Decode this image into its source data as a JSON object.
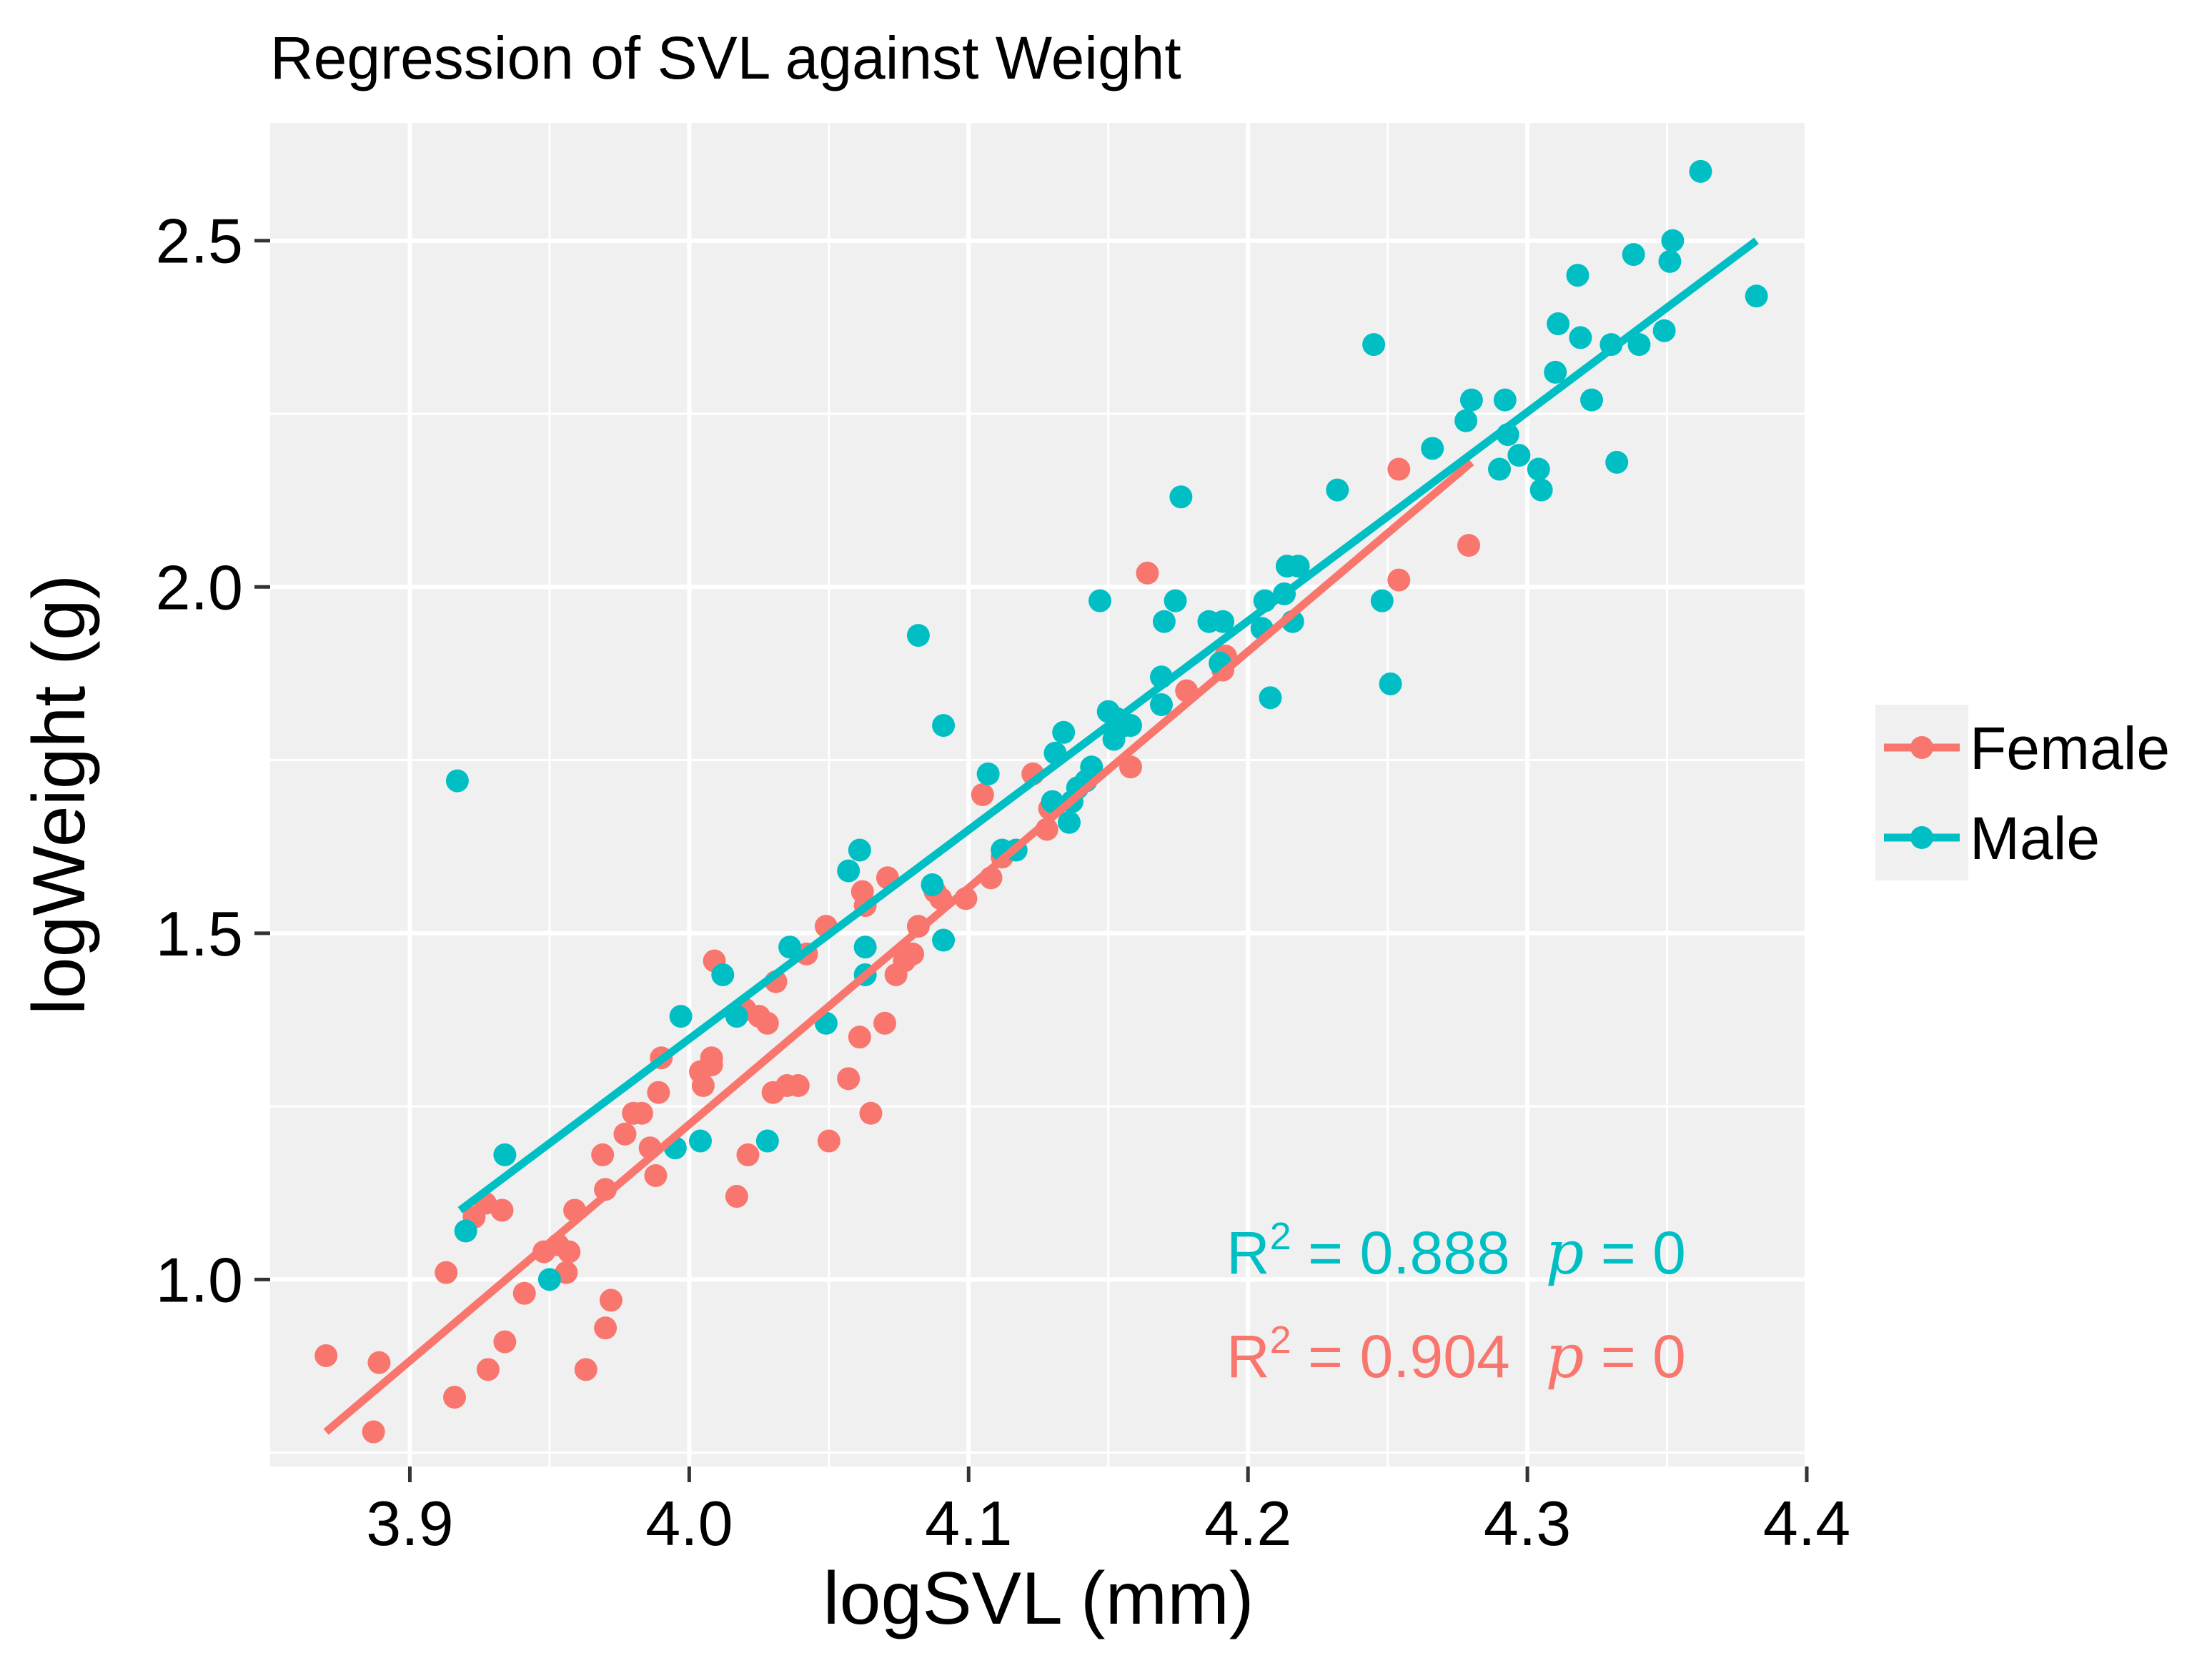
{
  "chart_data": {
    "type": "scatter",
    "title": "Regression of SVL against Weight",
    "xlabel": "logSVL (mm)",
    "ylabel": "logWeight (g)",
    "xlim": [
      3.85,
      4.4
    ],
    "ylim": [
      0.73,
      2.67
    ],
    "xticks": [
      3.9,
      4.0,
      4.1,
      4.2,
      4.3,
      4.4
    ],
    "xtick_labels": [
      "3.9",
      "4.0",
      "4.1",
      "4.2",
      "4.3",
      "4.4"
    ],
    "yticks": [
      1.0,
      1.5,
      2.0,
      2.5
    ],
    "ytick_labels": [
      "1.0",
      "1.5",
      "2.0",
      "2.5"
    ],
    "legend": {
      "position": "right",
      "entries": [
        "Female",
        "Male"
      ]
    },
    "colors": {
      "Female": "#F8766D",
      "Male": "#00BFC4",
      "panel": "#F0F0F0",
      "grid": "#FFFFFF"
    },
    "series": [
      {
        "name": "Female",
        "color": "#F8766D",
        "points": [
          [
            3.87,
            0.89
          ],
          [
            3.887,
            0.78
          ],
          [
            3.889,
            0.88
          ],
          [
            3.913,
            1.01
          ],
          [
            3.916,
            0.83
          ],
          [
            3.923,
            1.09
          ],
          [
            3.927,
            1.11
          ],
          [
            3.928,
            0.87
          ],
          [
            3.933,
            1.1
          ],
          [
            3.934,
            0.91
          ],
          [
            3.941,
            0.98
          ],
          [
            3.948,
            1.04
          ],
          [
            3.953,
            1.05
          ],
          [
            3.956,
            1.01
          ],
          [
            3.957,
            1.04
          ],
          [
            3.959,
            1.1
          ],
          [
            3.963,
            0.87
          ],
          [
            3.969,
            1.18
          ],
          [
            3.97,
            0.93
          ],
          [
            3.97,
            1.13
          ],
          [
            3.972,
            0.97
          ],
          [
            3.977,
            1.21
          ],
          [
            3.98,
            1.24
          ],
          [
            3.983,
            1.24
          ],
          [
            3.986,
            1.19
          ],
          [
            3.988,
            1.15
          ],
          [
            3.989,
            1.27
          ],
          [
            3.99,
            1.32
          ],
          [
            4.004,
            1.3
          ],
          [
            4.005,
            1.28
          ],
          [
            4.008,
            1.31
          ],
          [
            4.008,
            1.32
          ],
          [
            4.009,
            1.46
          ],
          [
            4.017,
            1.12
          ],
          [
            4.02,
            1.39
          ],
          [
            4.021,
            1.18
          ],
          [
            4.025,
            1.38
          ],
          [
            4.028,
            1.37
          ],
          [
            4.03,
            1.27
          ],
          [
            4.031,
            1.43
          ],
          [
            4.035,
            1.28
          ],
          [
            4.039,
            1.28
          ],
          [
            4.042,
            1.47
          ],
          [
            4.049,
            1.51
          ],
          [
            4.05,
            1.2
          ],
          [
            4.057,
            1.29
          ],
          [
            4.061,
            1.35
          ],
          [
            4.062,
            1.56
          ],
          [
            4.063,
            1.54
          ],
          [
            4.065,
            1.24
          ],
          [
            4.07,
            1.37
          ],
          [
            4.071,
            1.58
          ],
          [
            4.074,
            1.44
          ],
          [
            4.077,
            1.46
          ],
          [
            4.08,
            1.47
          ],
          [
            4.082,
            1.51
          ],
          [
            4.088,
            1.56
          ],
          [
            4.09,
            1.55
          ],
          [
            4.099,
            1.55
          ],
          [
            4.105,
            1.7
          ],
          [
            4.108,
            1.58
          ],
          [
            4.112,
            1.61
          ],
          [
            4.123,
            1.73
          ],
          [
            4.128,
            1.65
          ],
          [
            4.129,
            1.68
          ],
          [
            4.158,
            1.74
          ],
          [
            4.164,
            2.02
          ],
          [
            4.178,
            1.85
          ],
          [
            4.191,
            1.88
          ],
          [
            4.192,
            1.9
          ],
          [
            4.254,
            2.01
          ],
          [
            4.254,
            2.17
          ],
          [
            4.279,
            2.06
          ]
        ],
        "fit": {
          "x0": 3.87,
          "y0": 0.78,
          "x1": 4.28,
          "y1": 2.18
        }
      },
      {
        "name": "Male",
        "color": "#00BFC4",
        "points": [
          [
            3.917,
            1.72
          ],
          [
            3.92,
            1.07
          ],
          [
            3.934,
            1.18
          ],
          [
            3.95,
            1.0
          ],
          [
            3.995,
            1.19
          ],
          [
            3.997,
            1.38
          ],
          [
            4.004,
            1.2
          ],
          [
            4.012,
            1.44
          ],
          [
            4.017,
            1.38
          ],
          [
            4.028,
            1.2
          ],
          [
            4.036,
            1.48
          ],
          [
            4.049,
            1.37
          ],
          [
            4.057,
            1.59
          ],
          [
            4.061,
            1.62
          ],
          [
            4.063,
            1.44
          ],
          [
            4.063,
            1.48
          ],
          [
            4.082,
            1.93
          ],
          [
            4.087,
            1.57
          ],
          [
            4.091,
            1.49
          ],
          [
            4.091,
            1.8
          ],
          [
            4.107,
            1.73
          ],
          [
            4.112,
            1.62
          ],
          [
            4.117,
            1.62
          ],
          [
            4.13,
            1.69
          ],
          [
            4.131,
            1.76
          ],
          [
            4.134,
            1.79
          ],
          [
            4.136,
            1.66
          ],
          [
            4.137,
            1.69
          ],
          [
            4.139,
            1.71
          ],
          [
            4.142,
            1.72
          ],
          [
            4.144,
            1.74
          ],
          [
            4.147,
            1.98
          ],
          [
            4.15,
            1.82
          ],
          [
            4.152,
            1.78
          ],
          [
            4.153,
            1.81
          ],
          [
            4.156,
            1.8
          ],
          [
            4.158,
            1.8
          ],
          [
            4.169,
            1.83
          ],
          [
            4.169,
            1.87
          ],
          [
            4.17,
            1.95
          ],
          [
            4.174,
            1.98
          ],
          [
            4.176,
            2.13
          ],
          [
            4.186,
            1.95
          ],
          [
            4.19,
            1.89
          ],
          [
            4.191,
            1.95
          ],
          [
            4.205,
            1.94
          ],
          [
            4.206,
            1.98
          ],
          [
            4.208,
            1.84
          ],
          [
            4.213,
            1.99
          ],
          [
            4.214,
            2.03
          ],
          [
            4.216,
            1.95
          ],
          [
            4.218,
            2.03
          ],
          [
            4.232,
            2.14
          ],
          [
            4.245,
            2.35
          ],
          [
            4.248,
            1.98
          ],
          [
            4.251,
            1.86
          ],
          [
            4.266,
            2.2
          ],
          [
            4.278,
            2.24
          ],
          [
            4.28,
            2.27
          ],
          [
            4.29,
            2.17
          ],
          [
            4.292,
            2.27
          ],
          [
            4.293,
            2.22
          ],
          [
            4.297,
            2.19
          ],
          [
            4.304,
            2.17
          ],
          [
            4.305,
            2.14
          ],
          [
            4.31,
            2.31
          ],
          [
            4.311,
            2.38
          ],
          [
            4.318,
            2.45
          ],
          [
            4.319,
            2.36
          ],
          [
            4.323,
            2.27
          ],
          [
            4.33,
            2.35
          ],
          [
            4.332,
            2.18
          ],
          [
            4.338,
            2.48
          ],
          [
            4.34,
            2.35
          ],
          [
            4.349,
            2.37
          ],
          [
            4.351,
            2.47
          ],
          [
            4.352,
            2.5
          ],
          [
            4.362,
            2.6
          ],
          [
            4.382,
            2.42
          ]
        ],
        "fit": {
          "x0": 3.918,
          "y0": 1.1,
          "x1": 4.382,
          "y1": 2.5
        }
      }
    ],
    "annotations": [
      {
        "series": "Male",
        "r_label": "R",
        "sup": "2",
        "eq": " = 0.888",
        "p_label": "p",
        "p_eq": " = 0"
      },
      {
        "series": "Female",
        "r_label": "R",
        "sup": "2",
        "eq": " = 0.904",
        "p_label": "p",
        "p_eq": " = 0"
      }
    ]
  }
}
